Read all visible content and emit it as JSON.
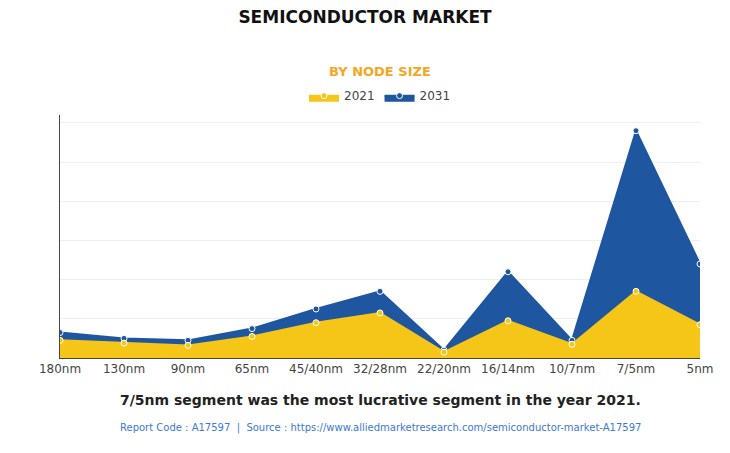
{
  "chart_data": {
    "type": "area",
    "title": "SEMICONDUCTOR MARKET",
    "subtitle": "BY NODE SIZE",
    "annotation": "7/5nm segment was the most lucrative segment in the year 2021.",
    "source": "Report Code : A17597  |  Source : https://www.alliedmarketresearch.com/semiconductor-market-A17597",
    "categories": [
      "180nm",
      "130nm",
      "90nm",
      "65nm",
      "45/40nm",
      "32/28nm",
      "22/20nm",
      "16/14nm",
      "10/7nm",
      "7/5nm",
      "5nm"
    ],
    "series": [
      {
        "name": "2021",
        "color": "#F5C518",
        "values": [
          4.5,
          3.8,
          3.2,
          5.5,
          9.0,
          11.5,
          1.5,
          9.5,
          3.5,
          17.0,
          8.5
        ]
      },
      {
        "name": "2031",
        "color": "#1E56A0",
        "values": [
          6.5,
          5.0,
          4.5,
          7.5,
          12.5,
          17.0,
          2.0,
          22.0,
          4.5,
          58.0,
          24.0
        ]
      }
    ],
    "ylim": [
      0,
      62
    ],
    "yticks": [
      0,
      10,
      20,
      30,
      40,
      50,
      60
    ],
    "grid": true,
    "legend": "top",
    "marker": "circle",
    "tick_labels": "x"
  }
}
